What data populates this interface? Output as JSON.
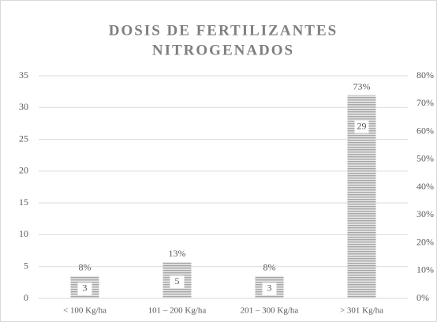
{
  "chart_data": {
    "type": "bar",
    "title": [
      "DOSIS DE FERTILIZANTES",
      "NITROGENADOS"
    ],
    "categories": [
      "< 100 Kg/ha",
      "101 – 200 Kg/ha",
      "201 – 300 Kg/ha",
      "> 301 Kg/ha"
    ],
    "series": [
      {
        "color": "#a6a6a6",
        "axis": "y2",
        "values": [
          8,
          13,
          8,
          73
        ],
        "value_labels": [
          "8%",
          "13%",
          "8%",
          "73%"
        ]
      }
    ],
    "counts": [
      3,
      5,
      3,
      29
    ],
    "ylim": [
      0,
      35
    ],
    "yticks": [
      0,
      5,
      10,
      15,
      20,
      25,
      30,
      35
    ],
    "y2lim": [
      0,
      80
    ],
    "y2ticks": [
      {
        "value": 0,
        "label": "0%"
      },
      {
        "value": 10,
        "label": "10%"
      },
      {
        "value": 20,
        "label": "20%"
      },
      {
        "value": 30,
        "label": "30%"
      },
      {
        "value": 40,
        "label": "40%"
      },
      {
        "value": 50,
        "label": "50%"
      },
      {
        "value": 60,
        "label": "60%"
      },
      {
        "value": 70,
        "label": "70%"
      },
      {
        "value": 80,
        "label": "80%"
      }
    ],
    "grid": true
  }
}
